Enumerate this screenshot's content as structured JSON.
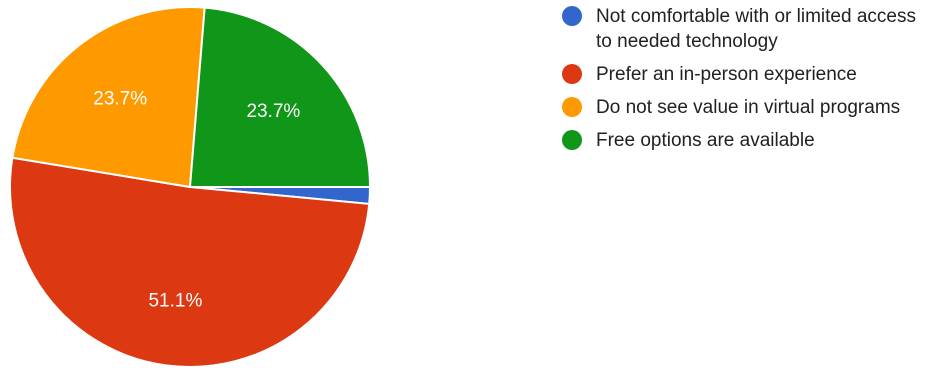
{
  "chart_data": {
    "type": "pie",
    "slices": [
      {
        "label": "Not comfortable with or limited access to needed technology",
        "value": 1.5,
        "display": "",
        "color": "#3366cc"
      },
      {
        "label": "Prefer an in-person experience",
        "value": 51.1,
        "display": "51.1%",
        "color": "#dc3912"
      },
      {
        "label": "Do not see value in virtual programs",
        "value": 23.7,
        "display": "23.7%",
        "color": "#ff9900"
      },
      {
        "label": "Free options are available",
        "value": 23.7,
        "display": "23.7%",
        "color": "#109618"
      }
    ],
    "legend_position": "right"
  }
}
